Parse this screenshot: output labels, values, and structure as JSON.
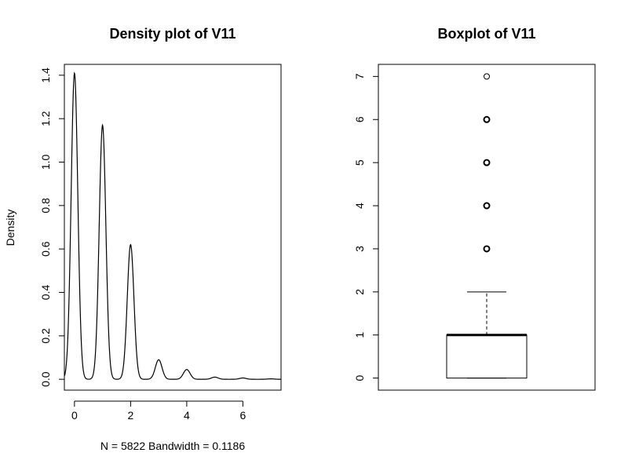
{
  "chart_data": [
    {
      "type": "line",
      "title": "Density plot of V11",
      "xlabel": "N = 5822   Bandwidth = 0.1186",
      "ylabel": "Density",
      "xlim": [
        -0.36,
        7.36
      ],
      "ylim": [
        -0.05,
        1.45
      ],
      "x_ticks": [
        0,
        2,
        4,
        6
      ],
      "y_ticks": [
        0.0,
        0.2,
        0.4,
        0.6,
        0.8,
        1.0,
        1.2,
        1.4
      ],
      "y_tick_labels": [
        "0.0",
        "0.2",
        "0.4",
        "0.6",
        "0.8",
        "1.0",
        "1.2",
        "1.4"
      ],
      "n": 5822,
      "bandwidth": 0.1186,
      "peaks": [
        {
          "x": 0,
          "density": 1.41
        },
        {
          "x": 1,
          "density": 1.17
        },
        {
          "x": 2,
          "density": 0.62
        },
        {
          "x": 3,
          "density": 0.09
        },
        {
          "x": 4,
          "density": 0.045
        },
        {
          "x": 5,
          "density": 0.01
        },
        {
          "x": 6,
          "density": 0.006
        },
        {
          "x": 7,
          "density": 0.002
        }
      ],
      "grid": false,
      "legend": "none"
    },
    {
      "type": "box",
      "title": "Boxplot of V11",
      "ylim": [
        -0.28,
        7.28
      ],
      "y_ticks": [
        0,
        1,
        2,
        3,
        4,
        5,
        6,
        7
      ],
      "y_tick_labels": [
        "0",
        "1",
        "2",
        "3",
        "4",
        "5",
        "6",
        "7"
      ],
      "whisker_low": 0,
      "q1": 0,
      "median": 1,
      "q3": 1,
      "whisker_high": 2,
      "outliers": [
        3,
        4,
        5,
        6,
        7
      ],
      "grid": false,
      "legend": "none"
    }
  ]
}
